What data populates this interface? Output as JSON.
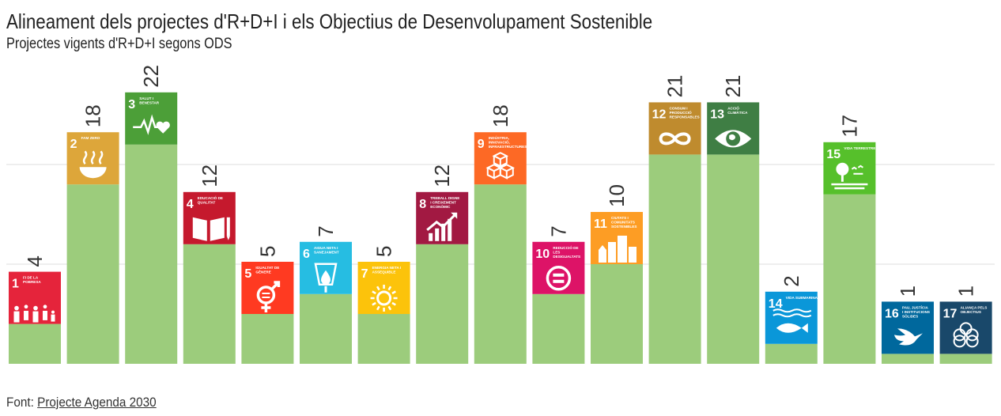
{
  "header": {
    "title": "Alineament dels projectes d'R+D+I i els Objectius de Desenvolupament Sostenible",
    "subtitle": "Projectes vigents d'R+D+I segons ODS"
  },
  "footer": {
    "source_label": "Font: ",
    "source_link": "Projecte Agenda 2030"
  },
  "chart_data": {
    "type": "bar",
    "bar_color": "#9ccc7c",
    "grid": true,
    "gridlines_at": [
      10,
      20
    ],
    "ylim": [
      0,
      25
    ],
    "categories": [
      {
        "num": "1",
        "label": "FI DE LA POBRESA",
        "value": 4,
        "color": "#e5243b",
        "icon": "family-icon"
      },
      {
        "num": "2",
        "label": "FAM ZERO",
        "value": 18,
        "color": "#dda63a",
        "icon": "bowl-icon"
      },
      {
        "num": "3",
        "label": "SALUT I BENESTAR",
        "value": 22,
        "color": "#4c9f38",
        "icon": "heartbeat-icon"
      },
      {
        "num": "4",
        "label": "EDUCACIÓ DE QUALITAT",
        "value": 12,
        "color": "#c5192d",
        "icon": "book-icon"
      },
      {
        "num": "5",
        "label": "IGUALTAT DE GÈNERE",
        "value": 5,
        "color": "#ff3a21",
        "icon": "gender-icon"
      },
      {
        "num": "6",
        "label": "AIGUA NETA I SANEJAMENT",
        "value": 7,
        "color": "#26bde2",
        "icon": "water-drop-icon"
      },
      {
        "num": "7",
        "label": "ENERGIA NETA I ASSEQUIBLE",
        "value": 5,
        "color": "#fcc30b",
        "icon": "sun-icon"
      },
      {
        "num": "8",
        "label": "TREBALL DIGNE I CREIXEMENT ECONÒMIC",
        "value": 12,
        "color": "#a21942",
        "icon": "growth-chart-icon"
      },
      {
        "num": "9",
        "label": "INDÚSTRIA, INNOVACIÓ, INFRAESTRUCTURES",
        "value": 18,
        "color": "#fd6925",
        "icon": "cubes-icon"
      },
      {
        "num": "10",
        "label": "REDUCCIÓ DE LES DESIGUALTATS",
        "value": 7,
        "color": "#dd1367",
        "icon": "equal-icon"
      },
      {
        "num": "11",
        "label": "CIUTATS I COMUNITATS SOSTENIBLES",
        "value": 10,
        "color": "#fd9d24",
        "icon": "buildings-icon"
      },
      {
        "num": "12",
        "label": "CONSUM I PRODUCCIÓ RESPONSABLES",
        "value": 21,
        "color": "#bf8b2e",
        "icon": "infinity-icon"
      },
      {
        "num": "13",
        "label": "ACCIÓ CLIMÀTICA",
        "value": 21,
        "color": "#3f7e44",
        "icon": "eye-globe-icon"
      },
      {
        "num": "14",
        "label": "VIDA SUBMARINA",
        "value": 2,
        "color": "#0a97d9",
        "icon": "fish-icon"
      },
      {
        "num": "15",
        "label": "VIDA TERRESTRE",
        "value": 17,
        "color": "#56c02b",
        "icon": "tree-icon"
      },
      {
        "num": "16",
        "label": "PAU, JUSTÍCIA I INSTITUCIONS SÒLIDES",
        "value": 1,
        "color": "#00689d",
        "icon": "dove-icon"
      },
      {
        "num": "17",
        "label": "ALIANÇA PELS OBJECTIUS",
        "value": 1,
        "color": "#19486a",
        "icon": "rings-icon"
      }
    ]
  }
}
